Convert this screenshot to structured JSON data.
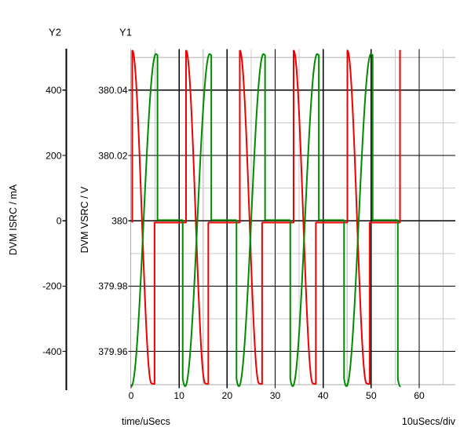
{
  "axes_headers": {
    "y2": "Y2",
    "y1": "Y1"
  },
  "chart_data": {
    "type": "line",
    "title": "",
    "x_axis": {
      "title": "time/uSecs",
      "scale_note": "10uSecs/div",
      "range_us": [
        0,
        67.5
      ],
      "major_ticks": [
        0,
        10,
        20,
        30,
        40,
        50,
        60
      ],
      "minor_ticks": [
        5,
        15,
        25,
        35,
        45,
        55,
        65
      ]
    },
    "y1_axis": {
      "header": "Y1",
      "title": "DVM VSRC / V",
      "range_v": [
        379.9503,
        380.0527
      ],
      "major_ticks": [
        380.04,
        380.02,
        380,
        379.98,
        379.96
      ],
      "minor_ticks": [
        380.05,
        380.03,
        380.01,
        379.99,
        379.97,
        379.95
      ]
    },
    "y2_axis": {
      "header": "Y2",
      "title": "DVM ISRC / mA",
      "range_ma": [
        -501,
        522
      ],
      "major_ticks": [
        400,
        200,
        0,
        -200,
        -400
      ]
    },
    "grid": {
      "major_color": "#000000",
      "minor_color": "#c9c9c9",
      "frame_color": "#aaaaaa",
      "background": "#ffffff"
    },
    "series": [
      {
        "name": "DVM ISRC",
        "axis": "Y2",
        "unit": "mA",
        "color": "#ee0000",
        "description": "Current: jumps from 0 to +522 mA at each cycle start, half-cosine fall to -498 mA, holds at trough, snaps back to ~0 mA and idles until next cycle.",
        "waveform": {
          "period_us": 11.2,
          "cycles": 5,
          "jump_offset_us": 0.24,
          "peak_ma": 522,
          "trough_ma": -498,
          "fall_half_cosine_us": 4.0,
          "rise_offset_us": 4.88,
          "idle_ma": -5.5,
          "final_jump_us": 56.0,
          "sim_end_us": 56.12
        }
      },
      {
        "name": "DVM VSRC",
        "axis": "Y1",
        "unit": "V",
        "color": "#008c00",
        "description": "Voltage: drops from 380 V to ~379.952 V just before cycle start, half-cosine rise to ~380.051 V, snaps back to 380 V and idles until next cycle.",
        "waveform": {
          "period_us": 11.2,
          "cycles": 5,
          "drop_lead_us": 0.45,
          "center_v": 380.0002,
          "amplitude_v": 0.0509,
          "min_offset_us": 0.05,
          "max_offset_us": 5.17,
          "drop_offset_us": 5.5,
          "idle_v": 380.0002,
          "sim_end_us": 56.15
        }
      }
    ]
  }
}
